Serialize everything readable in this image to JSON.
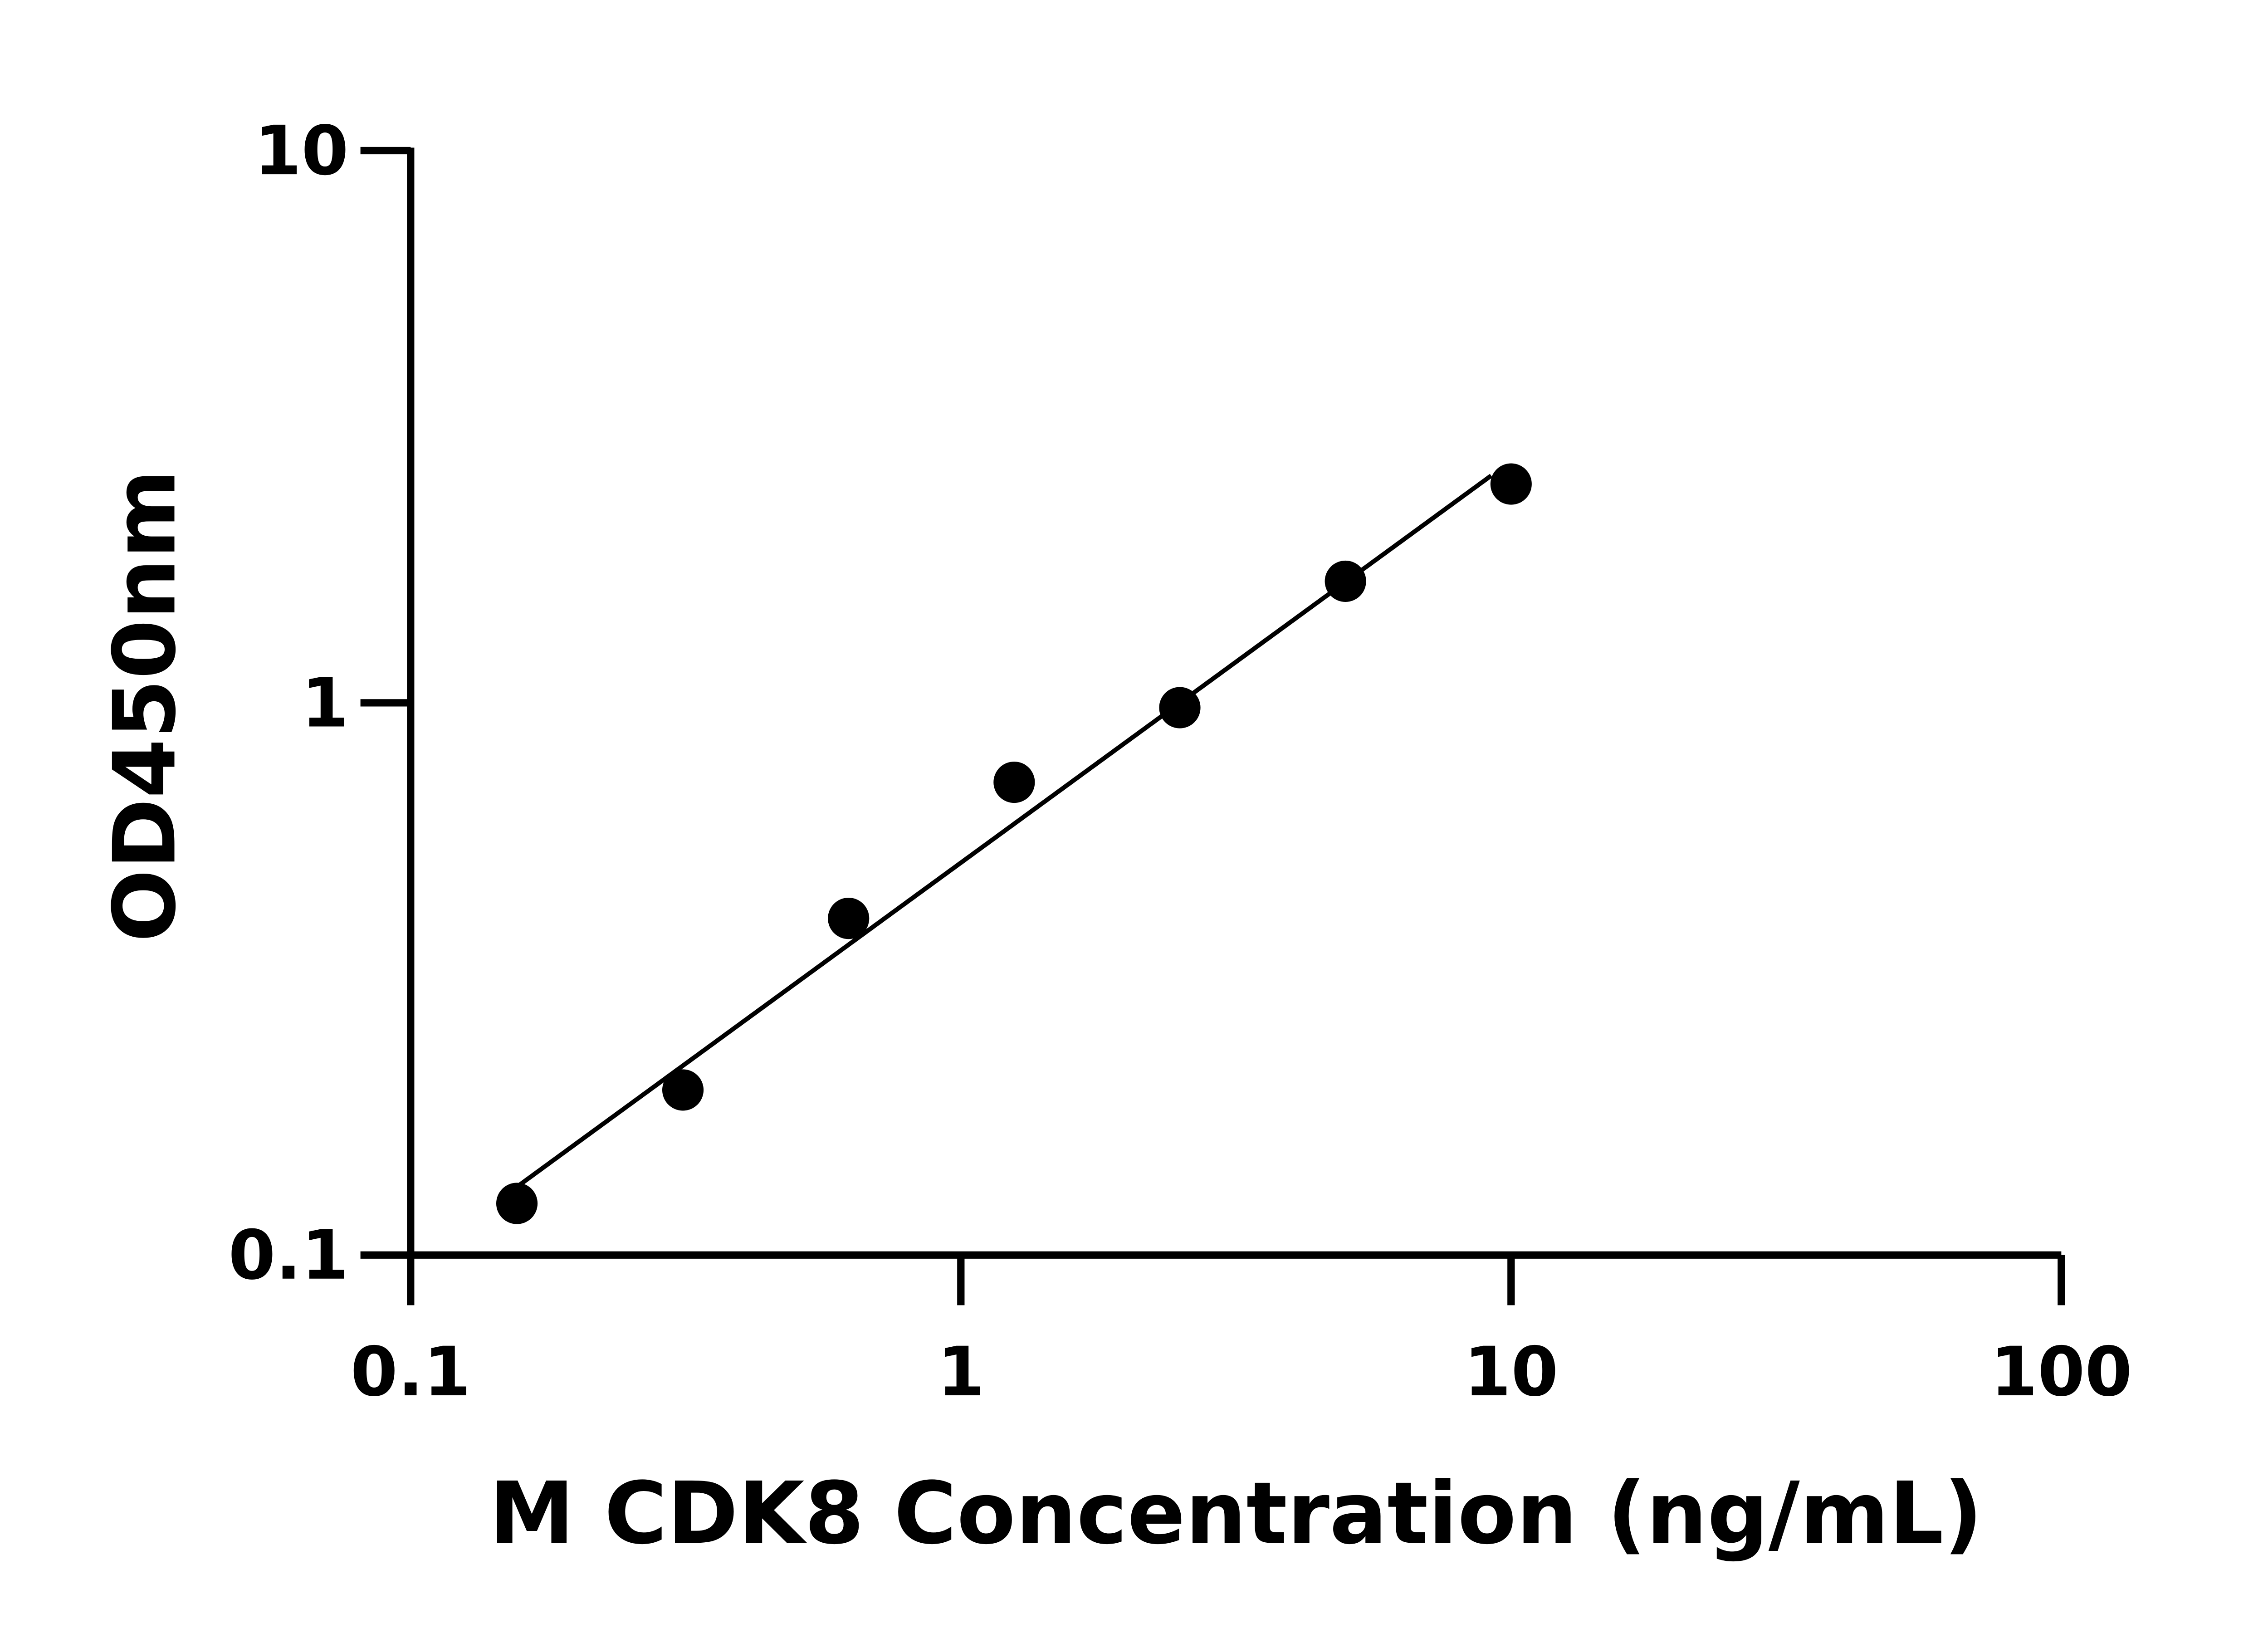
{
  "chart_data": {
    "type": "scatter",
    "title": "",
    "xlabel": "M CDK8 Concentration (ng/mL)",
    "ylabel": "OD450nm",
    "x_scale": "log",
    "y_scale": "log",
    "xlim": [
      0.1,
      100
    ],
    "ylim": [
      0.1,
      10
    ],
    "x_ticks": [
      0.1,
      1,
      10,
      100
    ],
    "x_tick_labels": [
      "0.1",
      "1",
      "10",
      "100"
    ],
    "y_ticks": [
      0.1,
      1,
      10
    ],
    "y_tick_labels": [
      "0.1",
      "1",
      "10"
    ],
    "grid": false,
    "marker_color": "#000000",
    "line_color": "#000000",
    "series": [
      {
        "x": [
          0.156,
          0.3125,
          0.625,
          1.25,
          2.5,
          5,
          10
        ],
        "y": [
          0.124,
          0.199,
          0.407,
          0.718,
          0.98,
          1.66,
          2.49
        ]
      }
    ],
    "fit_line": true
  }
}
